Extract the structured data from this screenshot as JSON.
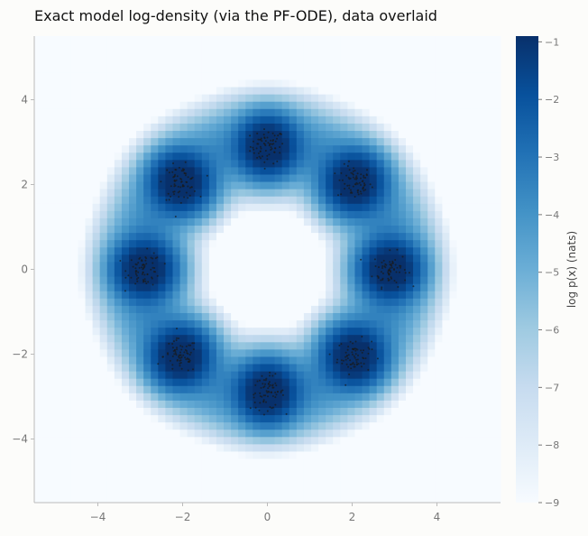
{
  "chart_data": {
    "type": "heatmap",
    "title": "Exact model log-density (via the PF-ODE), data overlaid",
    "xlabel": "",
    "ylabel": "",
    "xlim": [
      -5.5,
      5.5
    ],
    "ylim": [
      -5.5,
      5.5
    ],
    "xticks": [
      -4,
      -2,
      0,
      2,
      4
    ],
    "yticks": [
      -4,
      -2,
      0,
      2,
      4
    ],
    "xtick_labels": [
      "−4",
      "−2",
      "0",
      "2",
      "4"
    ],
    "ytick_labels": [
      "−4",
      "−2",
      "0",
      "2",
      "4"
    ],
    "grid": false,
    "colormap": "Blues",
    "colorbar": {
      "label": "log p(x)  (nats)",
      "range": [
        -9,
        -0.9
      ],
      "ticks": [
        -1,
        -2,
        -3,
        -4,
        -5,
        -6,
        -7,
        -8,
        -9
      ],
      "tick_labels": [
        "−1",
        "−2",
        "−3",
        "−4",
        "−5",
        "−6",
        "−7",
        "−8",
        "−9"
      ]
    },
    "density": {
      "model": "mixture of 8 Gaussians on a ring",
      "ring_radius": 2.9,
      "mode_centers": [
        [
          0,
          2.9
        ],
        [
          2.05,
          2.05
        ],
        [
          2.9,
          0
        ],
        [
          2.05,
          -2.05
        ],
        [
          0,
          -2.9
        ],
        [
          -2.05,
          -2.05
        ],
        [
          -2.9,
          0
        ],
        [
          -2.05,
          2.05
        ]
      ],
      "mode_std": 0.32,
      "ring_band_std": 0.45,
      "floor": -9
    },
    "data_overlay": {
      "type": "scatter",
      "color": "#1a1a1a",
      "clusters": [
        [
          0,
          2.9
        ],
        [
          2.05,
          2.05
        ],
        [
          2.9,
          0
        ],
        [
          2.05,
          -2.05
        ],
        [
          0,
          -2.9
        ],
        [
          -2.05,
          -2.05
        ],
        [
          -2.9,
          0
        ],
        [
          -2.05,
          2.05
        ]
      ],
      "points_per_cluster": 70,
      "cluster_std": 0.2
    }
  },
  "colors": {
    "cmap_low": "#f7fbff",
    "cmap_mid": "#6baed6",
    "cmap_high": "#08306b",
    "axis": "#bbbbbb",
    "tick_label": "#777777"
  }
}
